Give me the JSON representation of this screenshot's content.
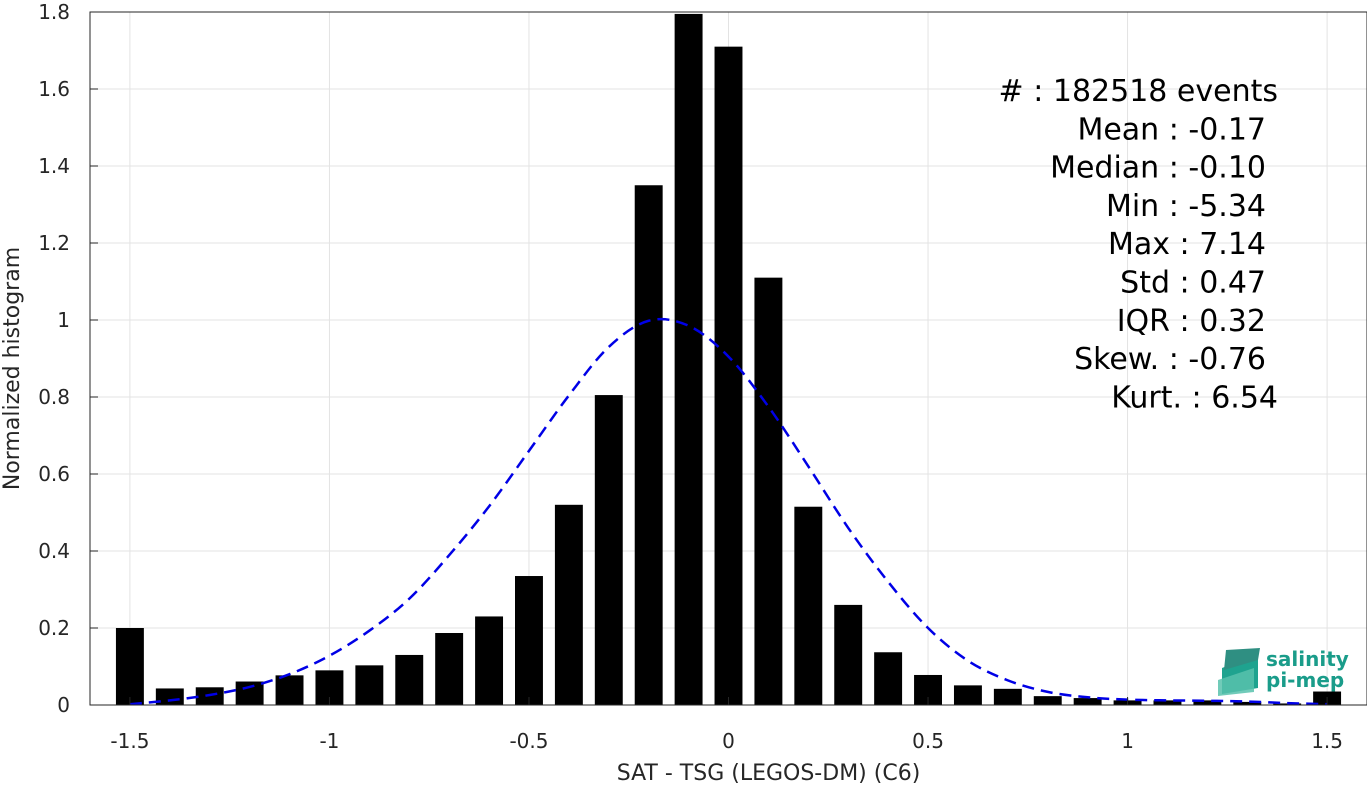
{
  "chart_data": {
    "type": "bar",
    "xlabel": "SAT - TSG (LEGOS-DM) (C6)",
    "ylabel": "Normalized histogram",
    "xlim": [
      -1.6,
      1.6
    ],
    "ylim": [
      0,
      1.8
    ],
    "xticks": [
      "-1.5",
      "-1",
      "-0.5",
      "0",
      "0.5",
      "1",
      "1.5"
    ],
    "xtick_values": [
      -1.5,
      -1,
      -0.5,
      0,
      0.5,
      1,
      1.5
    ],
    "yticks": [
      "0",
      "0.2",
      "0.4",
      "0.6",
      "0.8",
      "1",
      "1.2",
      "1.4",
      "1.6",
      "1.8"
    ],
    "ytick_values": [
      0,
      0.2,
      0.4,
      0.6,
      0.8,
      1,
      1.2,
      1.4,
      1.6,
      1.8
    ],
    "grid": true,
    "bar_color": "#000000",
    "fit_color": "#0000e6",
    "bins": [
      -1.5,
      -1.4,
      -1.3,
      -1.2,
      -1.1,
      -1.0,
      -0.9,
      -0.8,
      -0.7,
      -0.6,
      -0.5,
      -0.4,
      -0.3,
      -0.2,
      -0.1,
      0.0,
      0.1,
      0.2,
      0.3,
      0.4,
      0.5,
      0.6,
      0.7,
      0.8,
      0.9,
      1.0,
      1.1,
      1.2,
      1.3,
      1.4,
      1.5
    ],
    "values": [
      0.2,
      0.043,
      0.046,
      0.061,
      0.077,
      0.09,
      0.103,
      0.13,
      0.187,
      0.23,
      0.335,
      0.52,
      0.805,
      1.35,
      1.795,
      1.71,
      1.11,
      0.515,
      0.26,
      0.137,
      0.078,
      0.051,
      0.042,
      0.023,
      0.018,
      0.012,
      0.012,
      0.012,
      0.008,
      0.004,
      0.035
    ],
    "fit": {
      "type": "gaussian",
      "style": "dashed",
      "x": [
        -1.5,
        -1.4,
        -1.3,
        -1.2,
        -1.1,
        -1.0,
        -0.9,
        -0.8,
        -0.7,
        -0.6,
        -0.5,
        -0.4,
        -0.3,
        -0.2,
        -0.1,
        0.0,
        0.1,
        0.2,
        0.3,
        0.4,
        0.5,
        0.6,
        0.7,
        0.8,
        0.9,
        1.0,
        1.1,
        1.2,
        1.3,
        1.4,
        1.5
      ],
      "y": [
        0.002,
        0.012,
        0.026,
        0.047,
        0.08,
        0.128,
        0.193,
        0.276,
        0.389,
        0.516,
        0.66,
        0.804,
        0.93,
        0.998,
        0.985,
        0.905,
        0.775,
        0.62,
        0.46,
        0.32,
        0.2,
        0.115,
        0.064,
        0.034,
        0.02,
        0.014,
        0.012,
        0.011,
        0.009,
        0.005,
        0.002
      ]
    },
    "stats": [
      "#  : 182518 events",
      "Mean : -0.17",
      "Median : -0.10",
      "Min : -5.34",
      "Max : 7.14",
      "Std : 0.47",
      "IQR : 0.32",
      "Skew. : -0.76",
      "Kurt. : 6.54"
    ]
  },
  "logo": {
    "line1": "salinity",
    "line2": "pi-mep"
  }
}
